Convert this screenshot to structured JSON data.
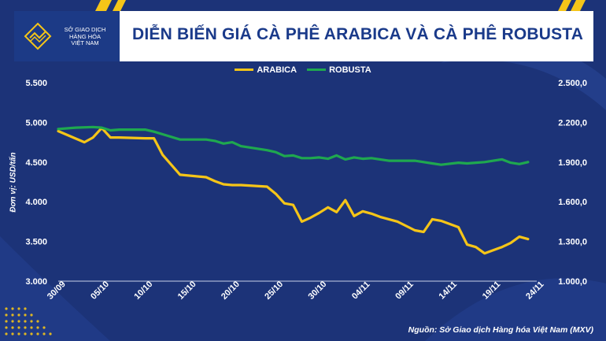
{
  "header": {
    "logo_lines": [
      "SỞ GIAO DỊCH",
      "HÀNG HÓA",
      "VIỆT NAM"
    ],
    "title": "DIỄN BIẾN GIÁ CÀ PHÊ ARABICA VÀ CÀ PHÊ ROBUSTA"
  },
  "colors": {
    "background": "#1c3378",
    "arabica": "#f5c518",
    "robusta": "#1fa84f",
    "title": "#1a3a8a"
  },
  "source": "Nguồn: Sở Giao dịch Hàng hóa Việt Nam (MXV)",
  "chart_data": {
    "type": "line",
    "title": "DIỄN BIẾN GIÁ CÀ PHÊ ARABICA VÀ CÀ PHÊ ROBUSTA",
    "ylabel": "Đơn vị: USD/tấn",
    "legend_position": "top-center",
    "grid": false,
    "x_tick_labels": [
      "30/09",
      "05/10",
      "10/10",
      "15/10",
      "20/10",
      "25/10",
      "30/10",
      "04/11",
      "09/11",
      "14/11",
      "19/11",
      "24/11"
    ],
    "x_range": [
      0,
      55
    ],
    "y_left": {
      "ticks": [
        "3.000",
        "3.500",
        "4.000",
        "4.500",
        "5.000",
        "5.500"
      ],
      "range": [
        3000,
        5500
      ]
    },
    "y_right": {
      "ticks": [
        "1.000,0",
        "1.300,0",
        "1.600,0",
        "1.900,0",
        "2.200,0",
        "2.500,0"
      ],
      "range": [
        1000,
        2500
      ]
    },
    "series": [
      {
        "name": "ARABICA",
        "axis": "left",
        "x": [
          0,
          3,
          4,
          5,
          6,
          7,
          10,
          11,
          12,
          14,
          17,
          18,
          19,
          20,
          21,
          24,
          25,
          26,
          27,
          28,
          29,
          30,
          31,
          32,
          33,
          34,
          35,
          36,
          37,
          38,
          39,
          41,
          42,
          43,
          44,
          46,
          47,
          48,
          49,
          51,
          52,
          53,
          54
        ],
        "values": [
          4890,
          4750,
          4810,
          4930,
          4810,
          4810,
          4800,
          4800,
          4590,
          4340,
          4310,
          4260,
          4220,
          4210,
          4210,
          4190,
          4100,
          3980,
          3960,
          3750,
          3800,
          3860,
          3930,
          3870,
          4020,
          3820,
          3880,
          3850,
          3810,
          3780,
          3750,
          3640,
          3620,
          3780,
          3760,
          3680,
          3460,
          3430,
          3350,
          3430,
          3480,
          3560,
          3530
        ]
      },
      {
        "name": "ROBUSTA",
        "axis": "right",
        "x": [
          0,
          2,
          4,
          5,
          6,
          7,
          10,
          11,
          12,
          14,
          17,
          18,
          19,
          20,
          21,
          24,
          25,
          26,
          27,
          28,
          29,
          30,
          31,
          32,
          33,
          34,
          35,
          36,
          37,
          38,
          39,
          41,
          42,
          43,
          44,
          46,
          47,
          48,
          49,
          51,
          52,
          53,
          54
        ],
        "values": [
          2150,
          2160,
          2165,
          2160,
          2140,
          2145,
          2145,
          2130,
          2110,
          2070,
          2070,
          2060,
          2040,
          2050,
          2020,
          1990,
          1975,
          1945,
          1950,
          1930,
          1930,
          1935,
          1925,
          1950,
          1920,
          1935,
          1925,
          1930,
          1920,
          1910,
          1910,
          1910,
          1900,
          1890,
          1880,
          1895,
          1890,
          1895,
          1900,
          1920,
          1895,
          1885,
          1900
        ]
      }
    ]
  }
}
